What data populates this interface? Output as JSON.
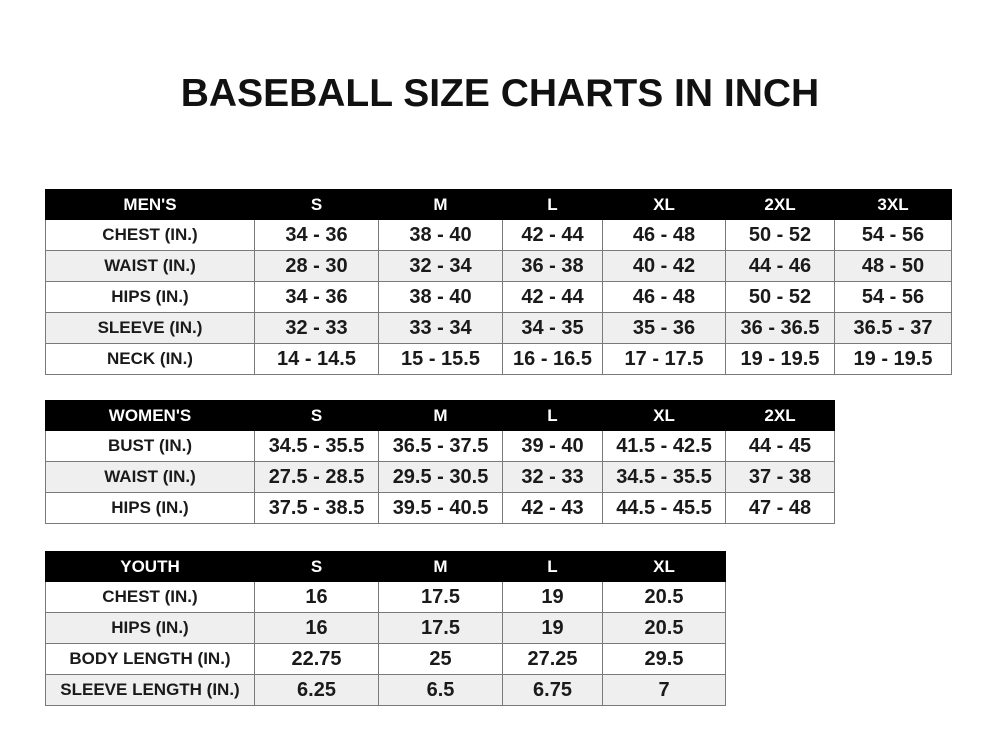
{
  "title": "BASEBALL SIZE CHARTS IN INCH",
  "tables": [
    {
      "name": "men",
      "header": [
        "MEN'S",
        "S",
        "M",
        "L",
        "XL",
        "2XL",
        "3XL"
      ],
      "rows": [
        [
          "CHEST (IN.)",
          "34 - 36",
          "38 - 40",
          "42 - 44",
          "46 - 48",
          "50 - 52",
          "54 - 56"
        ],
        [
          "WAIST (IN.)",
          "28 - 30",
          "32 - 34",
          "36 - 38",
          "40 - 42",
          "44 - 46",
          "48 - 50"
        ],
        [
          "HIPS (IN.)",
          "34 - 36",
          "38 - 40",
          "42 - 44",
          "46 - 48",
          "50 - 52",
          "54 - 56"
        ],
        [
          "SLEEVE (IN.)",
          "32 - 33",
          "33 - 34",
          "34 - 35",
          "35 - 36",
          "36 - 36.5",
          "36.5 - 37"
        ],
        [
          "NECK (IN.)",
          "14 - 14.5",
          "15 - 15.5",
          "16 - 16.5",
          "17 - 17.5",
          "19 - 19.5",
          "19 - 19.5"
        ]
      ]
    },
    {
      "name": "women",
      "header": [
        "WOMEN'S",
        "S",
        "M",
        "L",
        "XL",
        "2XL"
      ],
      "rows": [
        [
          "BUST (IN.)",
          "34.5 - 35.5",
          "36.5 - 37.5",
          "39 - 40",
          "41.5 - 42.5",
          "44 - 45"
        ],
        [
          "WAIST (IN.)",
          "27.5 - 28.5",
          "29.5 - 30.5",
          "32 - 33",
          "34.5 - 35.5",
          "37 - 38"
        ],
        [
          "HIPS (IN.)",
          "37.5 - 38.5",
          "39.5 - 40.5",
          "42 - 43",
          "44.5 - 45.5",
          "47 - 48"
        ]
      ]
    },
    {
      "name": "youth",
      "header": [
        "YOUTH",
        "S",
        "M",
        "L",
        "XL"
      ],
      "rows": [
        [
          "CHEST (IN.)",
          "16",
          "17.5",
          "19",
          "20.5"
        ],
        [
          "HIPS (IN.)",
          "16",
          "17.5",
          "19",
          "20.5"
        ],
        [
          "BODY LENGTH (IN.)",
          "22.75",
          "25",
          "27.25",
          "29.5"
        ],
        [
          "SLEEVE LENGTH (IN.)",
          "6.25",
          "6.5",
          "6.75",
          "7"
        ]
      ]
    }
  ]
}
